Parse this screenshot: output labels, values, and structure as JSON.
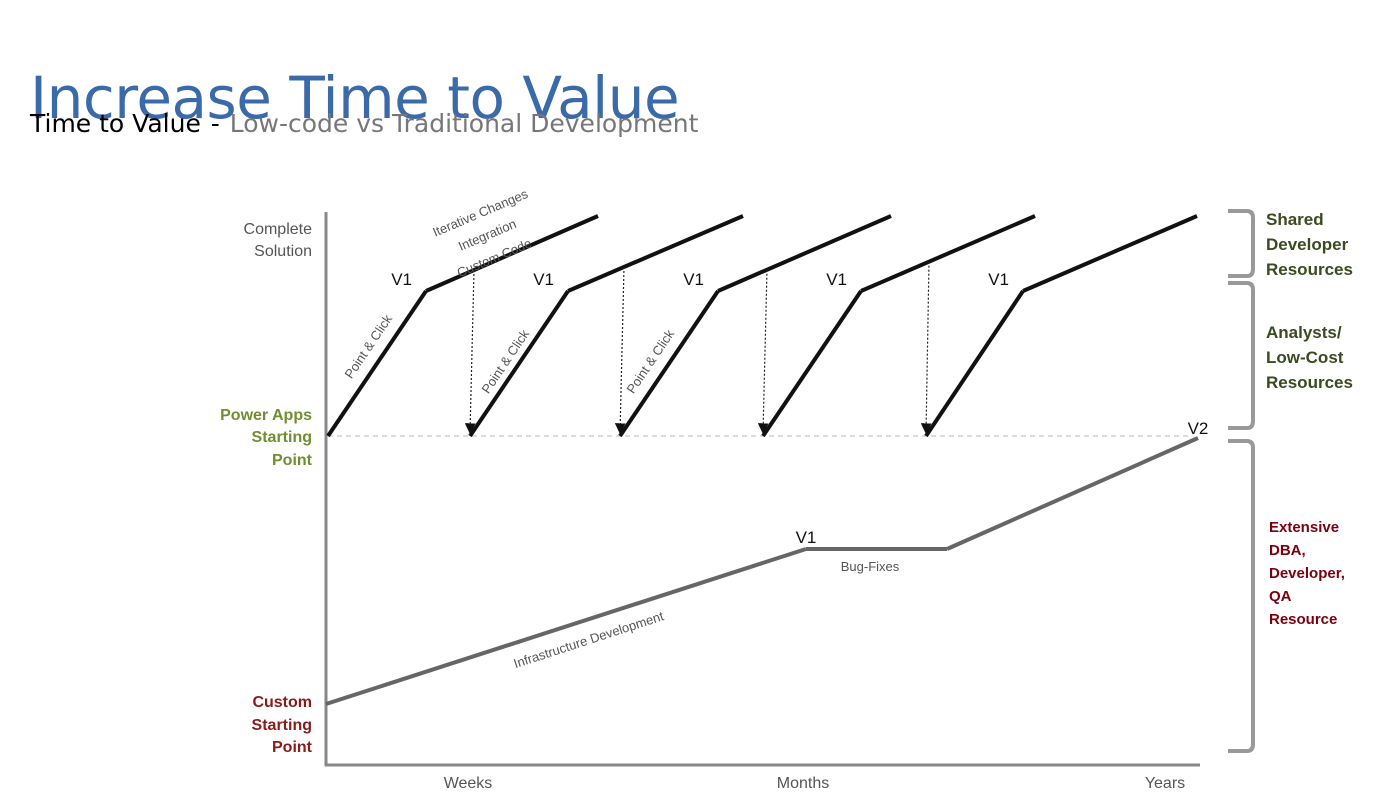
{
  "title": "Increase Time to Value",
  "subtitle": {
    "lead": "Time to Value",
    "separator": "-",
    "rest": "Low-code vs Traditional Development"
  },
  "colors": {
    "title": "#3b6aa8",
    "subtitle_rest": "#777777",
    "lowcode_line": "#111111",
    "traditional_line": "#666666",
    "green_label": "#6f8f2f",
    "dark_green_label": "#3b4a1f",
    "red_label": "#8b1a1a",
    "dark_red_label": "#7a0010",
    "gray_text": "#555555",
    "axis": "#888888",
    "bracket": "#999999"
  },
  "y_axis_labels": {
    "complete_solution": [
      "Complete",
      "Solution"
    ],
    "power_apps_start": [
      "Power Apps",
      "Starting",
      "Point"
    ],
    "custom_start": [
      "Custom",
      "Starting",
      "Point"
    ]
  },
  "x_axis_labels": [
    "Weeks",
    "Months",
    "Years"
  ],
  "lowcode": {
    "version_label": "V1",
    "cycle_count": 5,
    "build_label": "Point & Click",
    "iteration_labels": [
      "Iterative Changes",
      "Integration",
      "Custom Code"
    ]
  },
  "traditional": {
    "v1_label": "V1",
    "v2_label": "V2",
    "infra_label": "Infrastructure Development",
    "bugfix_label": "Bug-Fixes"
  },
  "resource_brackets": {
    "shared_dev": [
      "Shared",
      "Developer",
      "Resources"
    ],
    "analysts": [
      "Analysts/",
      "Low-Cost",
      "Resources"
    ],
    "extensive": [
      "Extensive",
      "DBA,",
      "Developer,",
      "QA",
      "Resource"
    ]
  }
}
